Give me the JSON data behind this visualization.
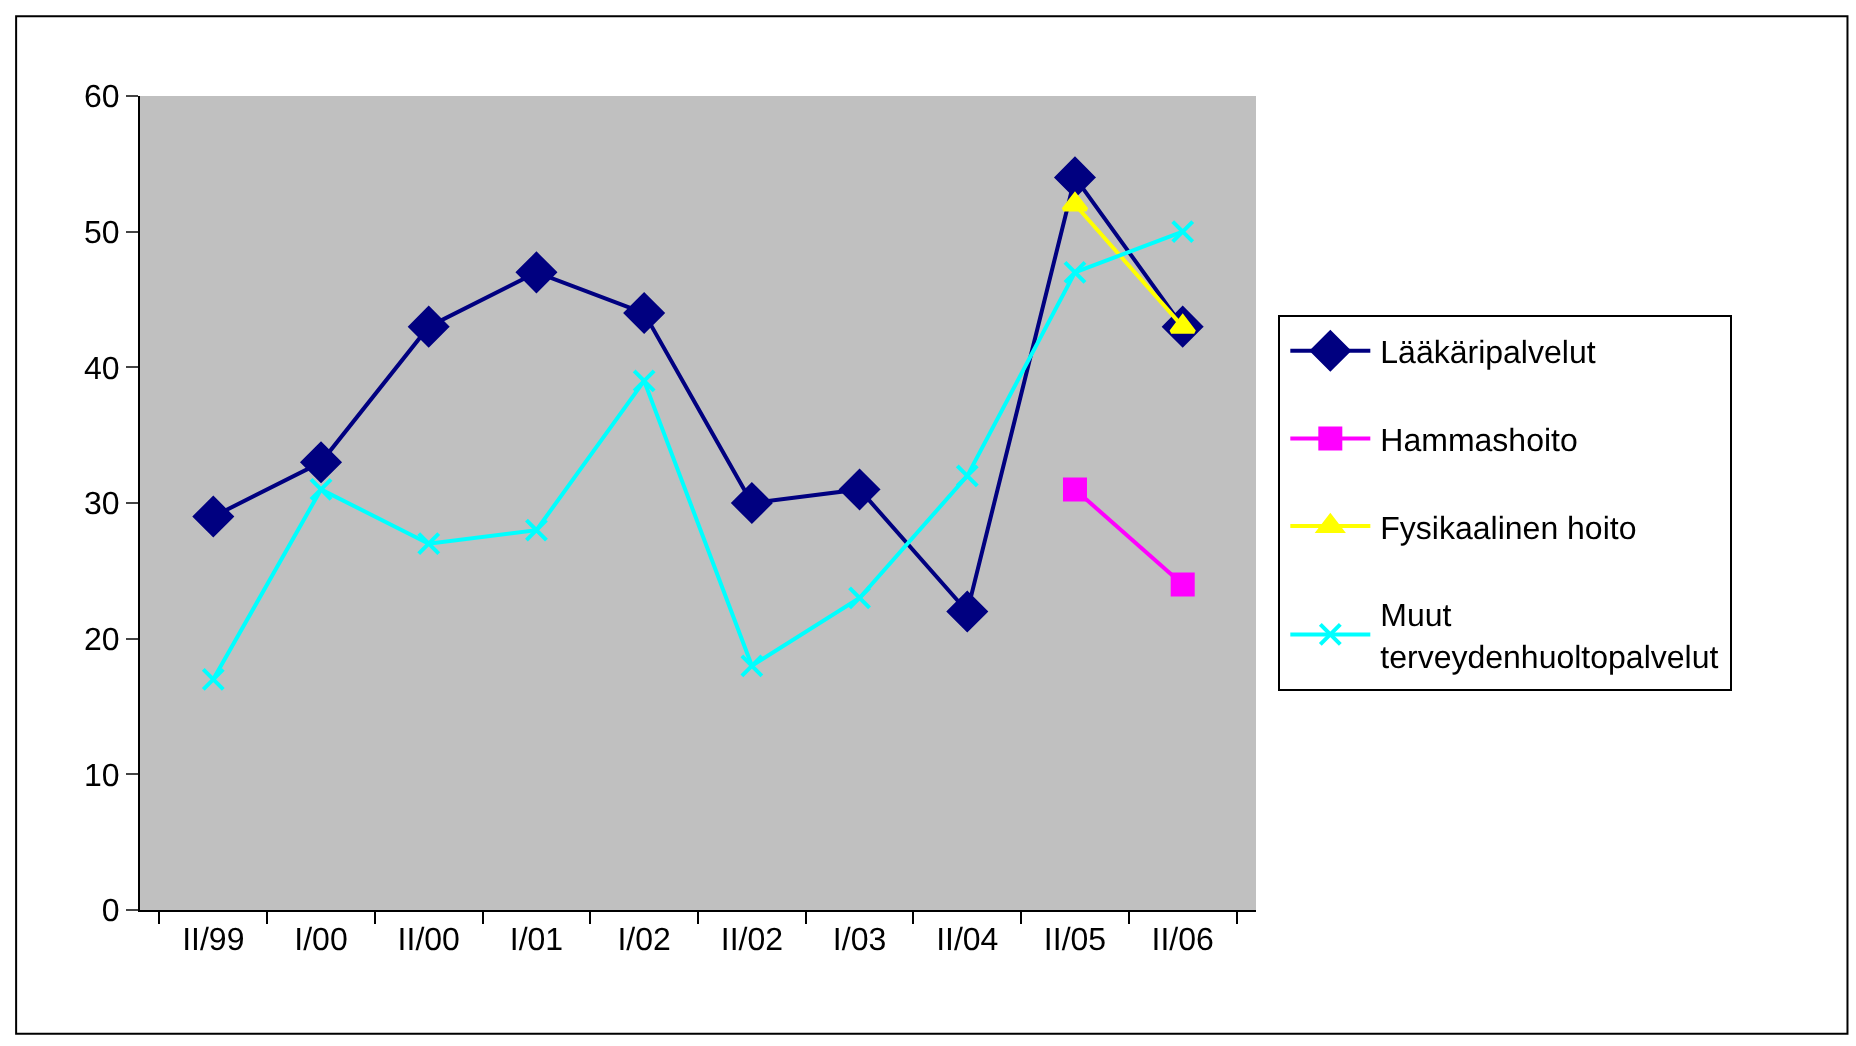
{
  "chart_data": {
    "type": "line",
    "categories": [
      "II/99",
      "I/00",
      "II/00",
      "I/01",
      "I/02",
      "II/02",
      "I/03",
      "II/04",
      "II/05",
      "II/06"
    ],
    "series": [
      {
        "name": "Lääkäripalvelut",
        "color": "#000080",
        "marker": "diamond",
        "values": [
          29,
          33,
          43,
          47,
          44,
          30,
          31,
          22,
          54,
          43
        ]
      },
      {
        "name": "Hammashoito",
        "color": "#ff00ff",
        "marker": "square",
        "values": [
          null,
          null,
          null,
          null,
          null,
          null,
          null,
          null,
          31,
          24
        ]
      },
      {
        "name": "Fysikaalinen hoito",
        "color": "#ffff00",
        "marker": "triangle",
        "values": [
          null,
          null,
          null,
          null,
          null,
          null,
          null,
          null,
          52,
          43
        ]
      },
      {
        "name": "Muut terveydenhuoltopalvelut",
        "color": "#00ffff",
        "marker": "cross",
        "values": [
          17,
          31,
          27,
          28,
          39,
          18,
          23,
          32,
          47,
          50
        ]
      }
    ],
    "ylim": [
      0,
      60
    ],
    "yticks": [
      0,
      10,
      20,
      30,
      40,
      50,
      60
    ],
    "grid": false,
    "legend": "right",
    "line_style": "solid"
  }
}
